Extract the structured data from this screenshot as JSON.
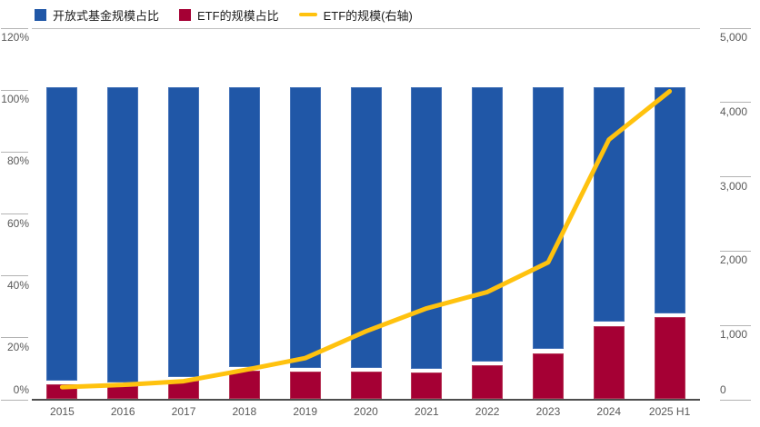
{
  "colors": {
    "open_fund_blue": "#2057a7",
    "etf_red": "#a50034",
    "line_yellow": "#ffc20e",
    "axis_text": "#595959",
    "grid_line": "#bfbfbf"
  },
  "legend": {
    "items": [
      {
        "label": "开放式基金规模占比",
        "marker": "square",
        "color": "#2057a7"
      },
      {
        "label": "ETF的规模占比",
        "marker": "square",
        "color": "#a50034"
      },
      {
        "label": "ETF的规模(右轴)",
        "marker": "line",
        "color": "#ffc20e"
      }
    ]
  },
  "chart_data": {
    "type": "bar",
    "subtype": "stacked-bars-with-line",
    "categories": [
      "2015",
      "2016",
      "2017",
      "2018",
      "2019",
      "2020",
      "2021",
      "2022",
      "2023",
      "2024",
      "2025 H1"
    ],
    "series": [
      {
        "name": "开放式基金规模占比",
        "type": "bar",
        "stack": true,
        "axis": "left",
        "color": "#2057a7",
        "values": [
          95.1,
          95.5,
          93.9,
          90.7,
          90.8,
          91.0,
          91.1,
          88.9,
          84.9,
          76.1,
          73.4
        ]
      },
      {
        "name": "ETF的规模占比",
        "type": "bar",
        "stack": true,
        "axis": "left",
        "color": "#a50034",
        "values": [
          4.9,
          4.5,
          6.1,
          9.3,
          9.2,
          9.0,
          8.9,
          11.1,
          15.1,
          23.9,
          26.6
        ]
      },
      {
        "name": "ETF的规模(右轴)",
        "type": "line",
        "axis": "right",
        "color": "#ffc20e",
        "values": [
          170,
          200,
          250,
          400,
          560,
          920,
          1230,
          1450,
          1850,
          3500,
          4150
        ]
      }
    ],
    "left_axis": {
      "min": 0,
      "max": 120,
      "tick_values": [
        0,
        20,
        40,
        60,
        80,
        100,
        120
      ],
      "tick_labels": [
        "0%",
        "20%",
        "40%",
        "60%",
        "80%",
        "100%",
        "120%"
      ]
    },
    "right_axis": {
      "min": 0,
      "max": 5000,
      "tick_values": [
        0,
        1000,
        2000,
        3000,
        4000,
        5000
      ],
      "tick_labels": [
        "0",
        "1,000",
        "2,000",
        "3,000",
        "4,000",
        "5,000"
      ]
    },
    "grid": "ticks-only",
    "legend_position": "top-left"
  }
}
